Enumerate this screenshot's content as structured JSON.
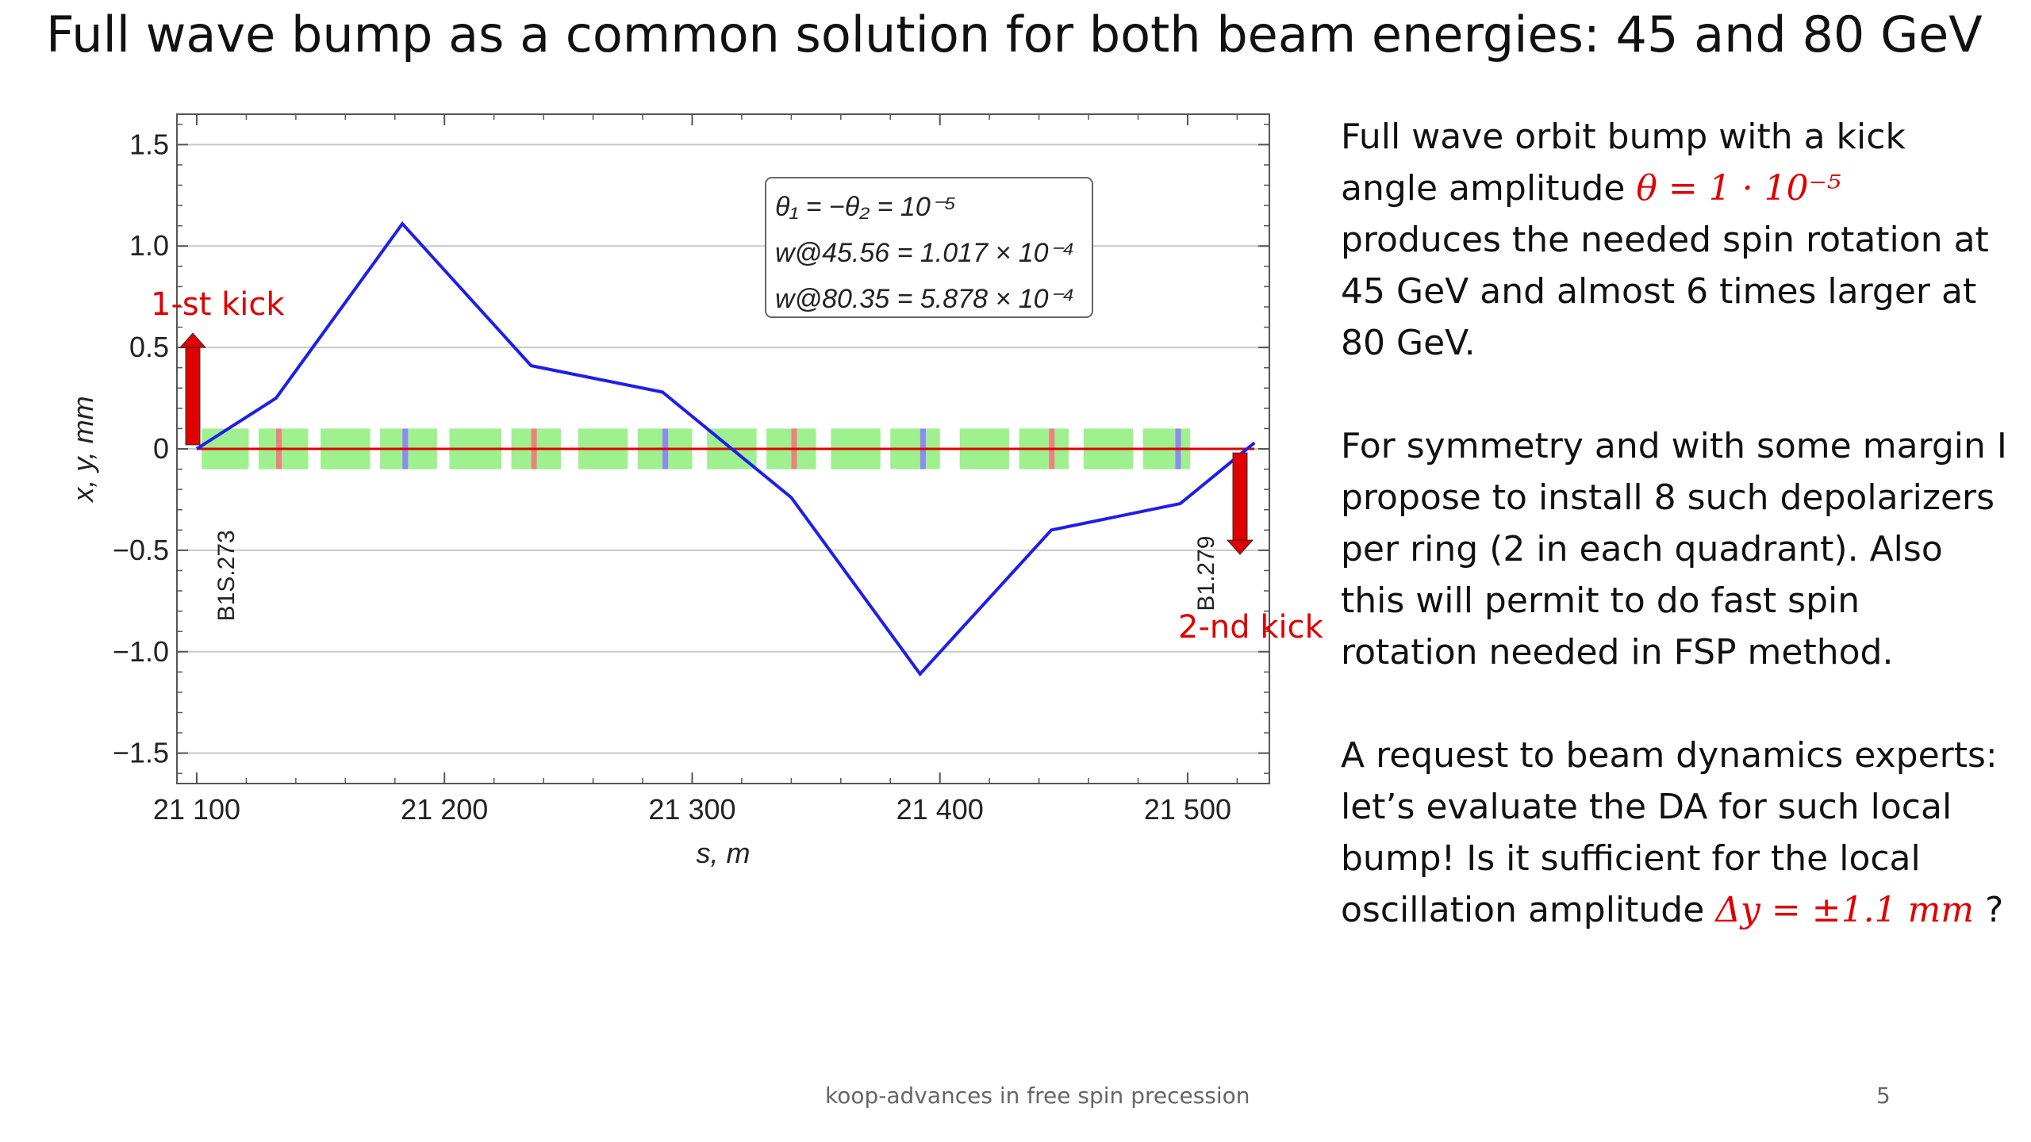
{
  "slide": {
    "title": "Full wave bump as a common solution for both beam energies: 45 and 80 GeV",
    "footer": "koop-advances in free spin precession",
    "page_number": "5"
  },
  "text": {
    "p1_a": "Full  wave orbit bump with a kick angle amplitude ",
    "p1_formula": "θ = 1 · 10⁻⁵",
    "p1_b": " produces the needed spin rotation at 45 GeV and almost 6 times larger at 80 GeV.",
    "p2": "For symmetry and with some margin I propose to install 8 such depolarizers per ring (2 in each quadrant). Also this will permit to do fast spin rotation needed in FSP method.",
    "p3_a": "A request to beam dynamics experts: let’s evaluate the DA for such local bump! Is it sufficient for the local oscillation amplitude ",
    "p3_formula": "Δy = ±1.1 mm",
    "p3_b": " ?"
  },
  "chart_data": {
    "type": "line",
    "xlabel": "s, m",
    "ylabel": "x, y, mm",
    "xlim": [
      21092,
      21533
    ],
    "ylim": [
      -1.65,
      1.65
    ],
    "x_ticks": [
      21100,
      21200,
      21300,
      21400,
      21500
    ],
    "x_tick_labels": [
      "21 100",
      "21 200",
      "21 300",
      "21 400",
      "21 500"
    ],
    "y_ticks": [
      1.5,
      1.0,
      0.5,
      0,
      -0.5,
      -1.0,
      -1.5
    ],
    "y_tick_labels": [
      "1.5",
      "1.0",
      "0.5",
      "0",
      "−0.5",
      "−1.0",
      "−1.5"
    ],
    "grid": true,
    "series": [
      {
        "color": "#1e1eeb",
        "x": [
          21100,
          21132,
          21183,
          21235,
          21288,
          21340,
          21392,
          21445,
          21497,
          21527
        ],
        "y": [
          0,
          0.25,
          1.11,
          0.41,
          0.28,
          -0.24,
          -1.11,
          -0.4,
          -0.27,
          0.03
        ]
      },
      {
        "color": "#e00000",
        "x": [
          21100,
          21527
        ],
        "y": [
          0,
          0
        ]
      }
    ],
    "elements": {
      "color": "#9ff08f",
      "y_half_height": 0.1,
      "blocks": [
        [
          21102,
          21121
        ],
        [
          21125,
          21145
        ],
        [
          21150,
          21170
        ],
        [
          21174,
          21197
        ],
        [
          21202,
          21223
        ],
        [
          21227,
          21247
        ],
        [
          21254,
          21274
        ],
        [
          21278,
          21300
        ],
        [
          21306,
          21326
        ],
        [
          21330,
          21350
        ],
        [
          21356,
          21376
        ],
        [
          21380,
          21400
        ],
        [
          21408,
          21428
        ],
        [
          21432,
          21452
        ],
        [
          21458,
          21478
        ],
        [
          21482,
          21501
        ]
      ],
      "markers": [
        {
          "s": 21133,
          "color": "#ee8080"
        },
        {
          "s": 21184,
          "color": "#8c8cf0"
        },
        {
          "s": 21236,
          "color": "#ee8080"
        },
        {
          "s": 21289,
          "color": "#8c8cf0"
        },
        {
          "s": 21341,
          "color": "#ee8080"
        },
        {
          "s": 21393,
          "color": "#8c8cf0"
        },
        {
          "s": 21445,
          "color": "#ee8080"
        },
        {
          "s": 21496,
          "color": "#8c8cf0"
        }
      ]
    },
    "legend": {
      "placement": "top-center",
      "lines": [
        "θ₁ = −θ₂ = 10⁻⁵",
        "w@45.56 = 1.017 × 10⁻⁴",
        "w@80.35 = 5.878 × 10⁻⁴"
      ]
    },
    "annotations": {
      "kick1": "1-st kick",
      "kick2": "2-nd kick",
      "left_marker": "B1S.273",
      "right_marker": "B1.279"
    }
  }
}
